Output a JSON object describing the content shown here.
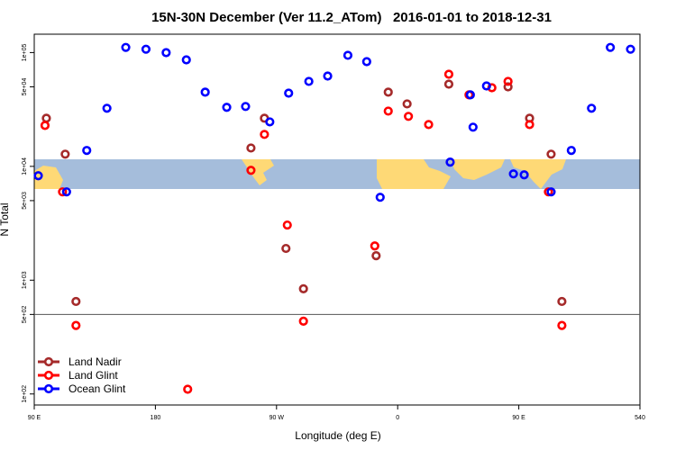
{
  "chart_data": {
    "type": "scatter",
    "title": "15N-30N December (Ver 11.2_ATom)   2016-01-01 to 2018-12-31",
    "x_label": "Longitude (deg E)",
    "y_label": "N Total",
    "log_y": true,
    "xlim": [
      90,
      540
    ],
    "ylim": [
      80,
      145000
    ],
    "xticks": [
      {
        "value": 90,
        "label": "90 E"
      },
      180,
      {
        "value": 270,
        "label": "90 W"
      },
      {
        "value": 360,
        "label": "0"
      },
      {
        "value": 450,
        "label": "90 E"
      },
      540
    ],
    "yticks": [
      {
        "value": 100,
        "label": "1e+02"
      },
      {
        "value": 500,
        "label": "5e+02"
      },
      {
        "value": 1000,
        "label": "1e+03"
      },
      {
        "value": 5000,
        "label": "5e+03"
      },
      {
        "value": 10000,
        "label": "1e+04"
      },
      {
        "value": 50000,
        "label": "5e+04"
      },
      {
        "value": 100000,
        "label": "1e+05"
      }
    ],
    "reference_line": 500,
    "legend": "bottomleft",
    "series": [
      {
        "name": "Land Nadir",
        "color": "#a52a2a",
        "x": [
          99,
          113,
          121,
          251,
          261,
          277,
          290,
          344,
          353,
          367,
          398,
          442,
          458,
          474,
          482
        ],
        "values": [
          26500,
          12800,
          650,
          14500,
          26500,
          1900,
          840,
          1640,
          44900,
          35400,
          52800,
          50000,
          26500,
          12800,
          650
        ]
      },
      {
        "name": "Land Glint",
        "color": "#ff0000",
        "x": [
          98,
          111,
          121,
          204,
          251,
          261,
          278,
          290,
          343,
          353,
          368,
          383,
          398,
          413,
          430,
          442,
          458,
          472,
          482
        ],
        "values": [
          22900,
          5970,
          400,
          110,
          9230,
          19100,
          3050,
          436,
          2000,
          30600,
          27500,
          23300,
          64500,
          42500,
          49100,
          55800,
          23300,
          5970,
          400
        ]
      },
      {
        "name": "Ocean Glint",
        "color": "#0000ff",
        "x": [
          93,
          114,
          129,
          144,
          158,
          173,
          188,
          203,
          217,
          233,
          247,
          265,
          279,
          294,
          308,
          323,
          337,
          347,
          399,
          414,
          416,
          426,
          446,
          454,
          474,
          489,
          504,
          518,
          533
        ],
        "values": [
          8270,
          5970,
          13800,
          32400,
          111000,
          107000,
          99800,
          86300,
          44900,
          33000,
          33600,
          24600,
          44000,
          55800,
          62200,
          94600,
          83200,
          5350,
          10900,
          42500,
          22100,
          50900,
          8590,
          8430,
          5970,
          13800,
          32400,
          111000,
          107000
        ]
      }
    ]
  }
}
